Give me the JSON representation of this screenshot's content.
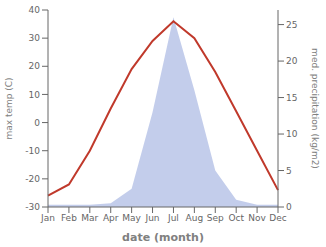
{
  "chart_data": {
    "type": "line",
    "xlabel": "date (month)",
    "ylabel": "max temp (C)",
    "y2label": "med. precipitation (kg/m2)",
    "categories": [
      "Jan",
      "Feb",
      "Mar",
      "Apr",
      "May",
      "Jun",
      "Jul",
      "Aug",
      "Sep",
      "Oct",
      "Nov",
      "Dec"
    ],
    "series": [
      {
        "type": "area",
        "axis": "y2",
        "color": "#b8c4e8",
        "values": [
          0.3,
          0.3,
          0.3,
          0.5,
          2.5,
          13.0,
          26.0,
          16.0,
          5.0,
          1.0,
          0.3,
          0.3
        ]
      },
      {
        "type": "line",
        "axis": "y",
        "color": "#c0392b",
        "values": [
          -26,
          -22,
          -10,
          5,
          19,
          29,
          36,
          30,
          18,
          4,
          -10,
          -24
        ]
      }
    ],
    "ylim": [
      -30,
      40
    ],
    "yticks": [
      -30,
      -20,
      -10,
      0,
      10,
      20,
      30,
      40
    ],
    "y2lim": [
      0,
      27.0
    ],
    "y2ticks": [
      0,
      5,
      10,
      15,
      20,
      25
    ]
  }
}
